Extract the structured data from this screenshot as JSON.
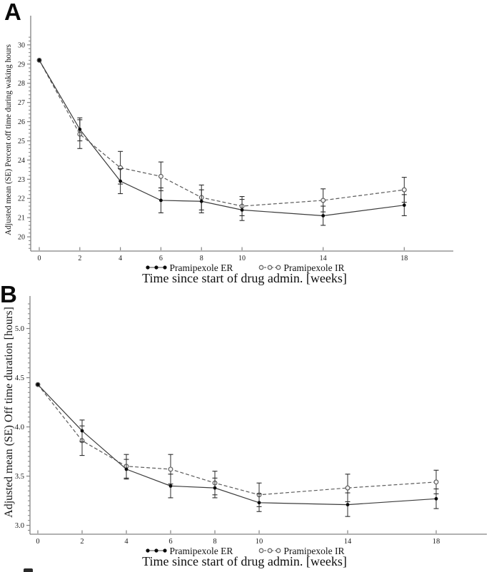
{
  "figure": {
    "panel_a_label": "A",
    "panel_b_label": "B"
  },
  "chart_data": [
    {
      "type": "line",
      "panel": "A",
      "title": "",
      "xlabel": "Time since start of drug admin. [weeks]",
      "ylabel": "Adjusted mean (SE) Percent off time during waking hours",
      "x": [
        0,
        2,
        4,
        6,
        8,
        10,
        14,
        18
      ],
      "xtick_labels": [
        "0",
        "2",
        "4",
        "6",
        "8",
        "10",
        "14",
        "18"
      ],
      "xlim": [
        -0.423,
        20.42
      ],
      "ylim": [
        19.26,
        31.52
      ],
      "yticks": [
        20,
        21,
        22,
        23,
        24,
        25,
        26,
        27,
        28,
        29,
        30
      ],
      "ytick_labels": [
        "20",
        "21",
        "22",
        "23",
        "24",
        "25",
        "26",
        "27",
        "28",
        "29",
        "30"
      ],
      "minor_y_step": 0.2,
      "minor_y_range": [
        19.4,
        30.4
      ],
      "grid": false,
      "legend_position": "bottom-center",
      "error_bars": "SE",
      "series": [
        {
          "name": "Pramipexole ER",
          "marker": "filled-circle",
          "line_style": "solid",
          "values": [
            29.2,
            25.6,
            22.9,
            21.9,
            21.85,
            21.4,
            21.1,
            21.65
          ],
          "se": [
            0,
            0.6,
            0.65,
            0.65,
            0.6,
            0.55,
            0.5,
            0.55
          ]
        },
        {
          "name": "Pramipexole IR",
          "marker": "open-circle",
          "line_style": "dashed",
          "values": [
            29.2,
            25.35,
            23.6,
            23.15,
            22.05,
            21.6,
            21.9,
            22.45
          ],
          "se": [
            0,
            0.75,
            0.85,
            0.75,
            0.65,
            0.5,
            0.6,
            0.65
          ]
        }
      ]
    },
    {
      "type": "line",
      "panel": "B",
      "title": "",
      "xlabel": "Time since start of drug admin. [weeks]",
      "ylabel": "Adjusted mean (SE) Off time duration [hours]",
      "x": [
        0,
        2,
        4,
        6,
        8,
        10,
        14,
        18
      ],
      "xtick_labels": [
        "0",
        "2",
        "4",
        "6",
        "8",
        "10",
        "14",
        "18"
      ],
      "xlim": [
        -0.355,
        20.29
      ],
      "ylim": [
        2.91,
        5.33
      ],
      "yticks": [
        3.0,
        3.5,
        4.0,
        4.5,
        5.0
      ],
      "ytick_labels": [
        "3.0",
        "3.5",
        "4.0",
        "4.5",
        "5.0"
      ],
      "minor_y_step": 0.05,
      "minor_y_range": [
        2.95,
        5.25
      ],
      "grid": false,
      "legend_position": "bottom-center",
      "error_bars": "SE",
      "series": [
        {
          "name": "Pramipexole ER",
          "marker": "filled-circle",
          "line_style": "solid",
          "values": [
            4.43,
            3.96,
            3.57,
            3.4,
            3.38,
            3.23,
            3.21,
            3.27
          ],
          "se": [
            0,
            0.11,
            0.1,
            0.12,
            0.1,
            0.09,
            0.12,
            0.1
          ]
        },
        {
          "name": "Pramipexole IR",
          "marker": "open-circle",
          "line_style": "dashed",
          "values": [
            4.43,
            3.86,
            3.6,
            3.57,
            3.43,
            3.31,
            3.38,
            3.44
          ],
          "se": [
            0,
            0.15,
            0.12,
            0.15,
            0.12,
            0.12,
            0.14,
            0.12
          ]
        }
      ]
    }
  ]
}
